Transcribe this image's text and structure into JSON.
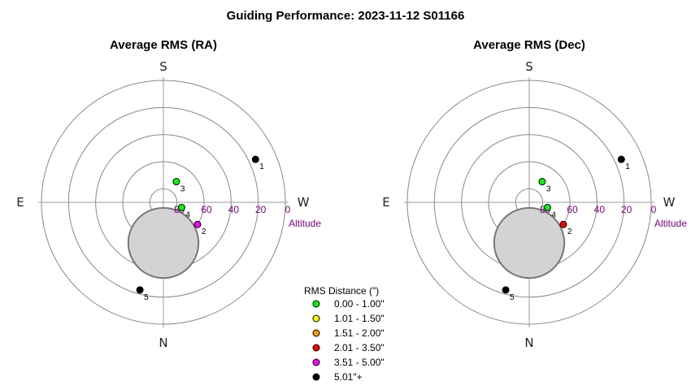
{
  "title": "Guiding Performance: 2023-11-12 S01166",
  "compass": {
    "top": "S",
    "bottom": "N",
    "left": "E",
    "right": "W"
  },
  "altitude_label": "Altitude",
  "altitude_ticks": [
    "80",
    "60",
    "40",
    "20",
    "0"
  ],
  "colors": {
    "ring": "#888888",
    "axis": "#999999",
    "moon_fill": "#d3d3d3",
    "moon_stroke": "#777777",
    "altitude_text": "#800080"
  },
  "legend": {
    "title": "RMS Distance (\")",
    "items": [
      {
        "label": "0.00 - 1.00\"",
        "color": "#00ff00"
      },
      {
        "label": "1.01 - 1.50\"",
        "color": "#ffff00"
      },
      {
        "label": "1.51 - 2.00\"",
        "color": "#ff9900"
      },
      {
        "label": "2.01 - 3.50\"",
        "color": "#ff0000"
      },
      {
        "label": "3.51 - 5.00\"",
        "color": "#ff00ff"
      },
      {
        "label": "5.01\"+",
        "color": "#000000"
      }
    ]
  },
  "chart_data": [
    {
      "type": "scatter",
      "projection": "polar-altaz",
      "title": "Average RMS (RA)",
      "rlim_altitude": [
        90,
        0
      ],
      "ring_altitudes": [
        80,
        60,
        40,
        20,
        0
      ],
      "moon": {
        "azimuth": 0,
        "altitude": 60,
        "radius_deg": 25
      },
      "points": [
        {
          "label": "1",
          "azimuth": 245,
          "altitude": 15,
          "color": "#000000"
        },
        {
          "label": "2",
          "azimuth": 303,
          "altitude": 60,
          "color": "#ff00ff"
        },
        {
          "label": "3",
          "azimuth": 212,
          "altitude": 72,
          "color": "#00ff00"
        },
        {
          "label": "4",
          "azimuth": 286,
          "altitude": 76,
          "color": "#00ff00"
        },
        {
          "label": "5",
          "azimuth": 15,
          "altitude": 23,
          "color": "#000000"
        }
      ]
    },
    {
      "type": "scatter",
      "projection": "polar-altaz",
      "title": "Average RMS (Dec)",
      "rlim_altitude": [
        90,
        0
      ],
      "ring_altitudes": [
        80,
        60,
        40,
        20,
        0
      ],
      "moon": {
        "azimuth": 0,
        "altitude": 60,
        "radius_deg": 25
      },
      "points": [
        {
          "label": "1",
          "azimuth": 245,
          "altitude": 15,
          "color": "#000000"
        },
        {
          "label": "2",
          "azimuth": 303,
          "altitude": 60,
          "color": "#ff0000"
        },
        {
          "label": "3",
          "azimuth": 212,
          "altitude": 72,
          "color": "#00ff00"
        },
        {
          "label": "4",
          "azimuth": 286,
          "altitude": 76,
          "color": "#00ff00"
        },
        {
          "label": "5",
          "azimuth": 15,
          "altitude": 23,
          "color": "#000000"
        }
      ]
    }
  ]
}
